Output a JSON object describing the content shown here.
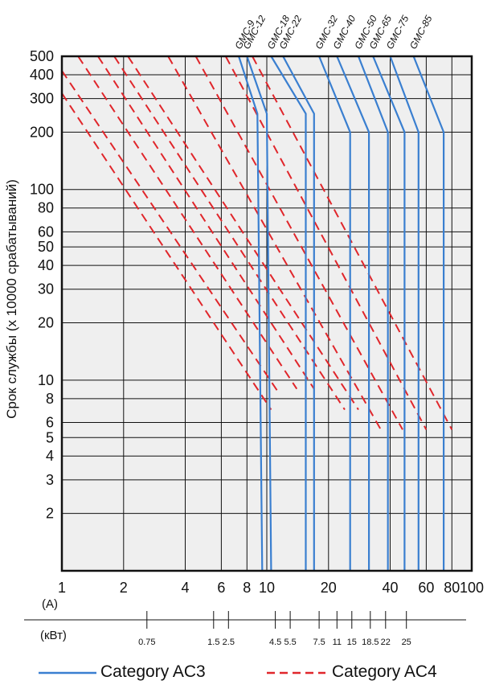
{
  "chart_data": {
    "type": "line",
    "ylabel": "Срок службы (x 10000 срабатываний)",
    "x_unit_current": "(A)",
    "x_unit_power": "(кВт)",
    "x_scale": "log",
    "y_scale": "log",
    "xlim": [
      1,
      100
    ],
    "ylim": [
      1,
      500
    ],
    "grid": true,
    "x_ticks": [
      1,
      2,
      4,
      6,
      8,
      10,
      20,
      40,
      60,
      80,
      100
    ],
    "x_tick_labels": [
      "1",
      "2",
      "4",
      "6",
      "8",
      "10",
      "20",
      "40",
      "60",
      "80",
      "100"
    ],
    "x_gridlines": [
      1,
      2,
      4,
      6,
      8,
      10,
      20,
      40,
      60,
      80,
      100
    ],
    "y_ticks": [
      2,
      3,
      4,
      5,
      6,
      8,
      10,
      20,
      30,
      40,
      50,
      60,
      80,
      100,
      200,
      300,
      400,
      500
    ],
    "y_tick_labels": [
      "2",
      "3",
      "4",
      "5",
      "6",
      "8",
      "10",
      "20",
      "30",
      "40",
      "50",
      "60",
      "80",
      "100",
      "200",
      "300",
      "400",
      "500"
    ],
    "power_axis": [
      {
        "current": 2.6,
        "label": "0.75"
      },
      {
        "current": 5.5,
        "label": "1.5"
      },
      {
        "current": 6.5,
        "label": "2.5"
      },
      {
        "current": 11,
        "label": "4.5"
      },
      {
        "current": 13,
        "label": "5.5"
      },
      {
        "current": 18,
        "label": "7.5"
      },
      {
        "current": 22,
        "label": "11"
      },
      {
        "current": 26,
        "label": "15"
      },
      {
        "current": 32,
        "label": "18.5"
      },
      {
        "current": 38,
        "label": "22"
      },
      {
        "current": 48,
        "label": "25"
      }
    ],
    "models": [
      "GMC-9",
      "GMC-12",
      "GMC-18",
      "GMC-22",
      "GMC-32",
      "GMC-40",
      "GMC-50",
      "GMC-65",
      "GMC-75",
      "GMC-85"
    ],
    "legend": [
      {
        "label": "Category AC3",
        "color": "#3a7fd0",
        "style": "solid"
      },
      {
        "label": "Category AC4",
        "color": "#e0262b",
        "style": "dashed"
      }
    ],
    "series": [
      {
        "name": "Category AC3",
        "model": "GMC-9",
        "x": [
          7.3,
          9,
          9.5
        ],
        "y": [
          500,
          250,
          1
        ]
      },
      {
        "name": "Category AC3",
        "model": "GMC-12",
        "x": [
          8,
          10,
          10.5
        ],
        "y": [
          500,
          250,
          1
        ]
      },
      {
        "name": "Category AC3",
        "model": "GMC-18",
        "x": [
          10.5,
          15.5,
          15.5
        ],
        "y": [
          500,
          250,
          1
        ]
      },
      {
        "name": "Category AC3",
        "model": "GMC-22",
        "x": [
          12,
          17,
          17
        ],
        "y": [
          500,
          250,
          1
        ]
      },
      {
        "name": "Category AC3",
        "model": "GMC-32",
        "x": [
          18,
          25.5,
          25.5
        ],
        "y": [
          500,
          200,
          1
        ]
      },
      {
        "name": "Category AC3",
        "model": "GMC-40",
        "x": [
          22,
          31.5,
          31.5
        ],
        "y": [
          500,
          200,
          1
        ]
      },
      {
        "name": "Category AC3",
        "model": "GMC-50",
        "x": [
          28,
          39,
          39
        ],
        "y": [
          500,
          200,
          1
        ]
      },
      {
        "name": "Category AC3",
        "model": "GMC-65",
        "x": [
          33,
          47,
          47
        ],
        "y": [
          500,
          200,
          1
        ]
      },
      {
        "name": "Category AC3",
        "model": "GMC-75",
        "x": [
          40,
          55,
          55
        ],
        "y": [
          500,
          200,
          1
        ]
      },
      {
        "name": "Category AC3",
        "model": "GMC-85",
        "x": [
          52,
          73,
          73
        ],
        "y": [
          500,
          200,
          1
        ]
      },
      {
        "name": "Category AC4",
        "model": "GMC-9",
        "x": [
          1,
          10.5
        ],
        "y": [
          320,
          7
        ]
      },
      {
        "name": "Category AC4",
        "model": "GMC-12",
        "x": [
          1,
          11.5
        ],
        "y": [
          420,
          8.5
        ]
      },
      {
        "name": "Category AC4",
        "model": "GMC-18",
        "x": [
          1.2,
          14
        ],
        "y": [
          500,
          9
        ]
      },
      {
        "name": "Category AC4",
        "model": "GMC-22",
        "x": [
          1.5,
          17
        ],
        "y": [
          500,
          9
        ]
      },
      {
        "name": "Category AC4",
        "model": "GMC-32",
        "x": [
          1.8,
          24
        ],
        "y": [
          500,
          7
        ]
      },
      {
        "name": "Category AC4",
        "model": "GMC-40",
        "x": [
          2.1,
          28
        ],
        "y": [
          500,
          7
        ]
      },
      {
        "name": "Category AC4",
        "model": "GMC-50",
        "x": [
          3.3,
          36
        ],
        "y": [
          500,
          5.5
        ]
      },
      {
        "name": "Category AC4",
        "model": "GMC-65",
        "x": [
          4.5,
          46
        ],
        "y": [
          500,
          5.5
        ]
      },
      {
        "name": "Category AC4",
        "model": "GMC-75",
        "x": [
          6.3,
          60
        ],
        "y": [
          500,
          5.5
        ]
      },
      {
        "name": "Category AC4",
        "model": "GMC-85",
        "x": [
          8.5,
          80
        ],
        "y": [
          500,
          5.5
        ]
      }
    ]
  }
}
